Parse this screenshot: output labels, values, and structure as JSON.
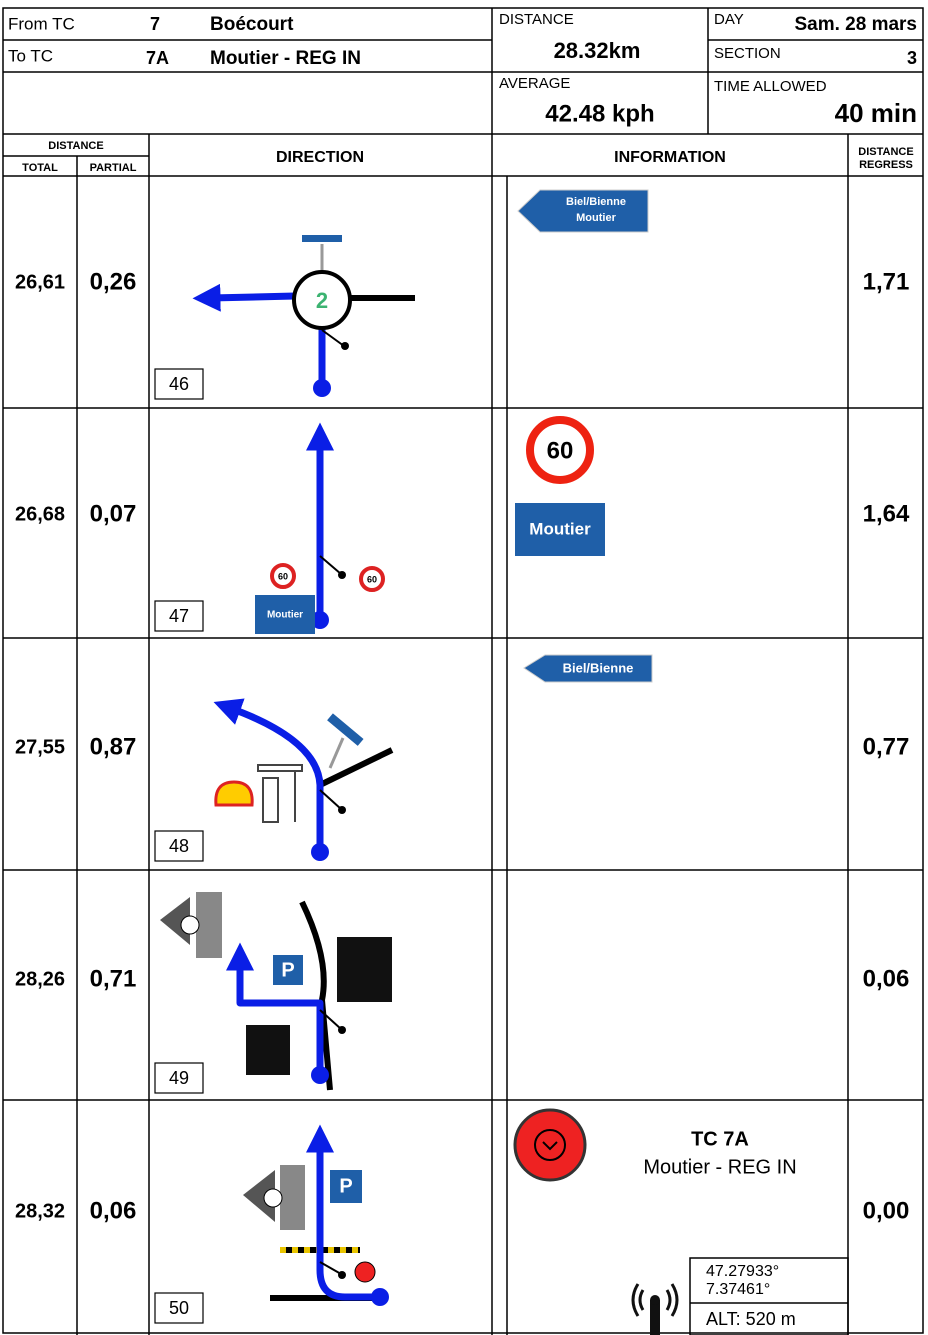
{
  "header": {
    "from_label": "From TC",
    "from_tc": "7",
    "from_name": "Boécourt",
    "to_label": "To TC",
    "to_tc": "7A",
    "to_name": "Moutier - REG IN",
    "distance_label": "DISTANCE",
    "distance": "28.32km",
    "average_label": "AVERAGE",
    "average": "42.48 kph",
    "day_label": "DAY",
    "day": "Sam. 28 mars",
    "section_label": "SECTION",
    "section": "3",
    "time_label": "TIME ALLOWED",
    "time": "40 min"
  },
  "columns": {
    "distance": "DISTANCE",
    "total": "TOTAL",
    "partial": "PARTIAL",
    "direction": "DIRECTION",
    "information": "INFORMATION",
    "regress": [
      "DISTANCE",
      "REGRESS"
    ]
  },
  "rows": [
    {
      "total": "26,61",
      "partial": "0,26",
      "number": "46",
      "regress": "1,71",
      "direction_texts": [
        "2"
      ],
      "info_texts": [
        "Biel/Bienne",
        "Moutier"
      ]
    },
    {
      "total": "26,68",
      "partial": "0,07",
      "number": "47",
      "regress": "1,64",
      "direction_texts": [
        "60",
        "Moutier",
        "60"
      ],
      "info_texts": [
        "60",
        "Moutier"
      ]
    },
    {
      "total": "27,55",
      "partial": "0,87",
      "number": "48",
      "regress": "0,77",
      "direction_texts": [],
      "info_texts": [
        "Biel/Bienne"
      ]
    },
    {
      "total": "28,26",
      "partial": "0,71",
      "number": "49",
      "regress": "0,06",
      "direction_texts": [
        "P"
      ],
      "info_texts": []
    },
    {
      "total": "28,32",
      "partial": "0,06",
      "number": "50",
      "regress": "0,00",
      "direction_texts": [
        "P"
      ],
      "info_texts": [
        "TC 7A",
        "Moutier - REG IN",
        "47.27933°",
        "7.37461°",
        "ALT: 520 m"
      ]
    }
  ]
}
